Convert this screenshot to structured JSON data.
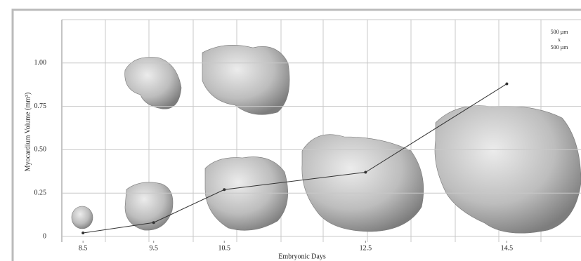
{
  "chart_data": {
    "type": "line",
    "x_label": "Embryonic Days",
    "y_label": "Myocardium Volume (mm³)",
    "annotation": [
      "500 µm",
      "x",
      "500 µm"
    ],
    "x": [
      8.5,
      9.5,
      10.5,
      12.5,
      14.5
    ],
    "series": [
      {
        "color": "#333333",
        "values": [
          0.02,
          0.08,
          0.27,
          0.37,
          0.88
        ]
      }
    ],
    "xlim": [
      8.2,
      15.55
    ],
    "xticks": [
      8.5,
      9.5,
      10.5,
      12.5,
      14.5
    ],
    "ylim": [
      0,
      1.25
    ],
    "yticks": [
      0,
      0.25,
      {
        "value": 0.5,
        "label": "0.50"
      },
      0.75,
      {
        "value": 1,
        "label": "1.00"
      }
    ],
    "grid": true
  }
}
